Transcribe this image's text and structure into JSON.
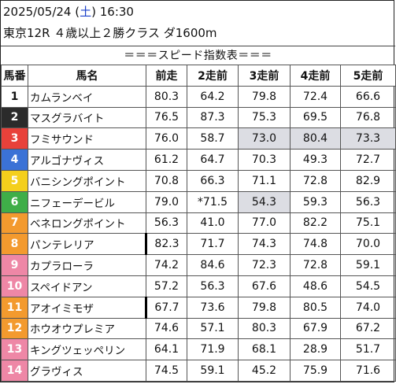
{
  "header": {
    "date": "2025/05/24",
    "dow_open": " (",
    "dow": "土",
    "dow_close": ")",
    "time": " 16:30",
    "race": "東京12R ４歳以上２勝クラス ダ1600m"
  },
  "subtitle": "＝＝＝スピード指数表＝＝＝",
  "columns": [
    "馬番",
    "馬名",
    "前走",
    "2走前",
    "3走前",
    "4走前",
    "5走前"
  ],
  "frame_colors": [
    "#ffffff",
    "#2b2b2b",
    "#e8413a",
    "#3b72d6",
    "#f4cf1c",
    "#3fae48",
    "#f39a2e",
    "#ee87a6"
  ],
  "rows": [
    {
      "no": "1",
      "name": "カムランベイ",
      "v": [
        "80.3",
        "64.2",
        "79.8",
        "72.4",
        "66.6"
      ],
      "hl": [],
      "mark": false
    },
    {
      "no": "2",
      "name": "マスグラバイト",
      "v": [
        "76.5",
        "87.3",
        "75.3",
        "69.5",
        "76.8"
      ],
      "hl": [],
      "mark": false
    },
    {
      "no": "3",
      "name": "フミサウンド",
      "v": [
        "76.0",
        "58.7",
        "73.0",
        "80.4",
        "73.3"
      ],
      "hl": [
        2,
        3,
        4
      ],
      "mark": false
    },
    {
      "no": "4",
      "name": "アルゴナヴィス",
      "v": [
        "61.2",
        "64.7",
        "70.3",
        "49.3",
        "72.7"
      ],
      "hl": [],
      "mark": false
    },
    {
      "no": "5",
      "name": "バニシングポイント",
      "v": [
        "70.8",
        "66.3",
        "71.1",
        "72.8",
        "82.9"
      ],
      "hl": [],
      "mark": false
    },
    {
      "no": "6",
      "name": "ニフェーデービル",
      "v": [
        "79.0",
        "*71.5",
        "54.3",
        "59.3",
        "56.3"
      ],
      "hl": [
        2
      ],
      "mark": false
    },
    {
      "no": "7",
      "name": "ベネロングポイント",
      "v": [
        "56.3",
        "41.0",
        "77.0",
        "82.2",
        "75.1"
      ],
      "hl": [],
      "mark": false
    },
    {
      "no": "8",
      "name": "パンテレリア",
      "v": [
        "82.3",
        "71.7",
        "74.3",
        "74.8",
        "70.0"
      ],
      "hl": [],
      "mark": true
    },
    {
      "no": "9",
      "name": "カプラローラ",
      "v": [
        "74.2",
        "84.6",
        "72.3",
        "72.8",
        "59.1"
      ],
      "hl": [],
      "mark": false
    },
    {
      "no": "10",
      "name": "スペイドアン",
      "v": [
        "57.2",
        "56.3",
        "67.6",
        "48.6",
        "54.5"
      ],
      "hl": [],
      "mark": false
    },
    {
      "no": "11",
      "name": "アオイミモザ",
      "v": [
        "67.7",
        "73.6",
        "79.8",
        "80.5",
        "74.0"
      ],
      "hl": [],
      "mark": true
    },
    {
      "no": "12",
      "name": "ホウオウプレミア",
      "v": [
        "74.6",
        "57.1",
        "80.3",
        "67.9",
        "67.2"
      ],
      "hl": [],
      "mark": false
    },
    {
      "no": "13",
      "name": "キングツェッペリン",
      "v": [
        "64.1",
        "71.9",
        "68.1",
        "28.9",
        "51.7"
      ],
      "hl": [],
      "mark": false
    },
    {
      "no": "14",
      "name": "グラヴィス",
      "v": [
        "74.5",
        "59.1",
        "45.2",
        "75.9",
        "71.6"
      ],
      "hl": [],
      "mark": false
    }
  ],
  "frames": [
    1,
    2,
    3,
    4,
    5,
    6,
    7,
    8,
    9,
    10,
    11,
    12,
    13,
    14
  ],
  "frame_index": [
    0,
    1,
    2,
    3,
    4,
    5,
    6,
    6,
    7,
    7,
    6,
    6,
    7,
    7
  ]
}
